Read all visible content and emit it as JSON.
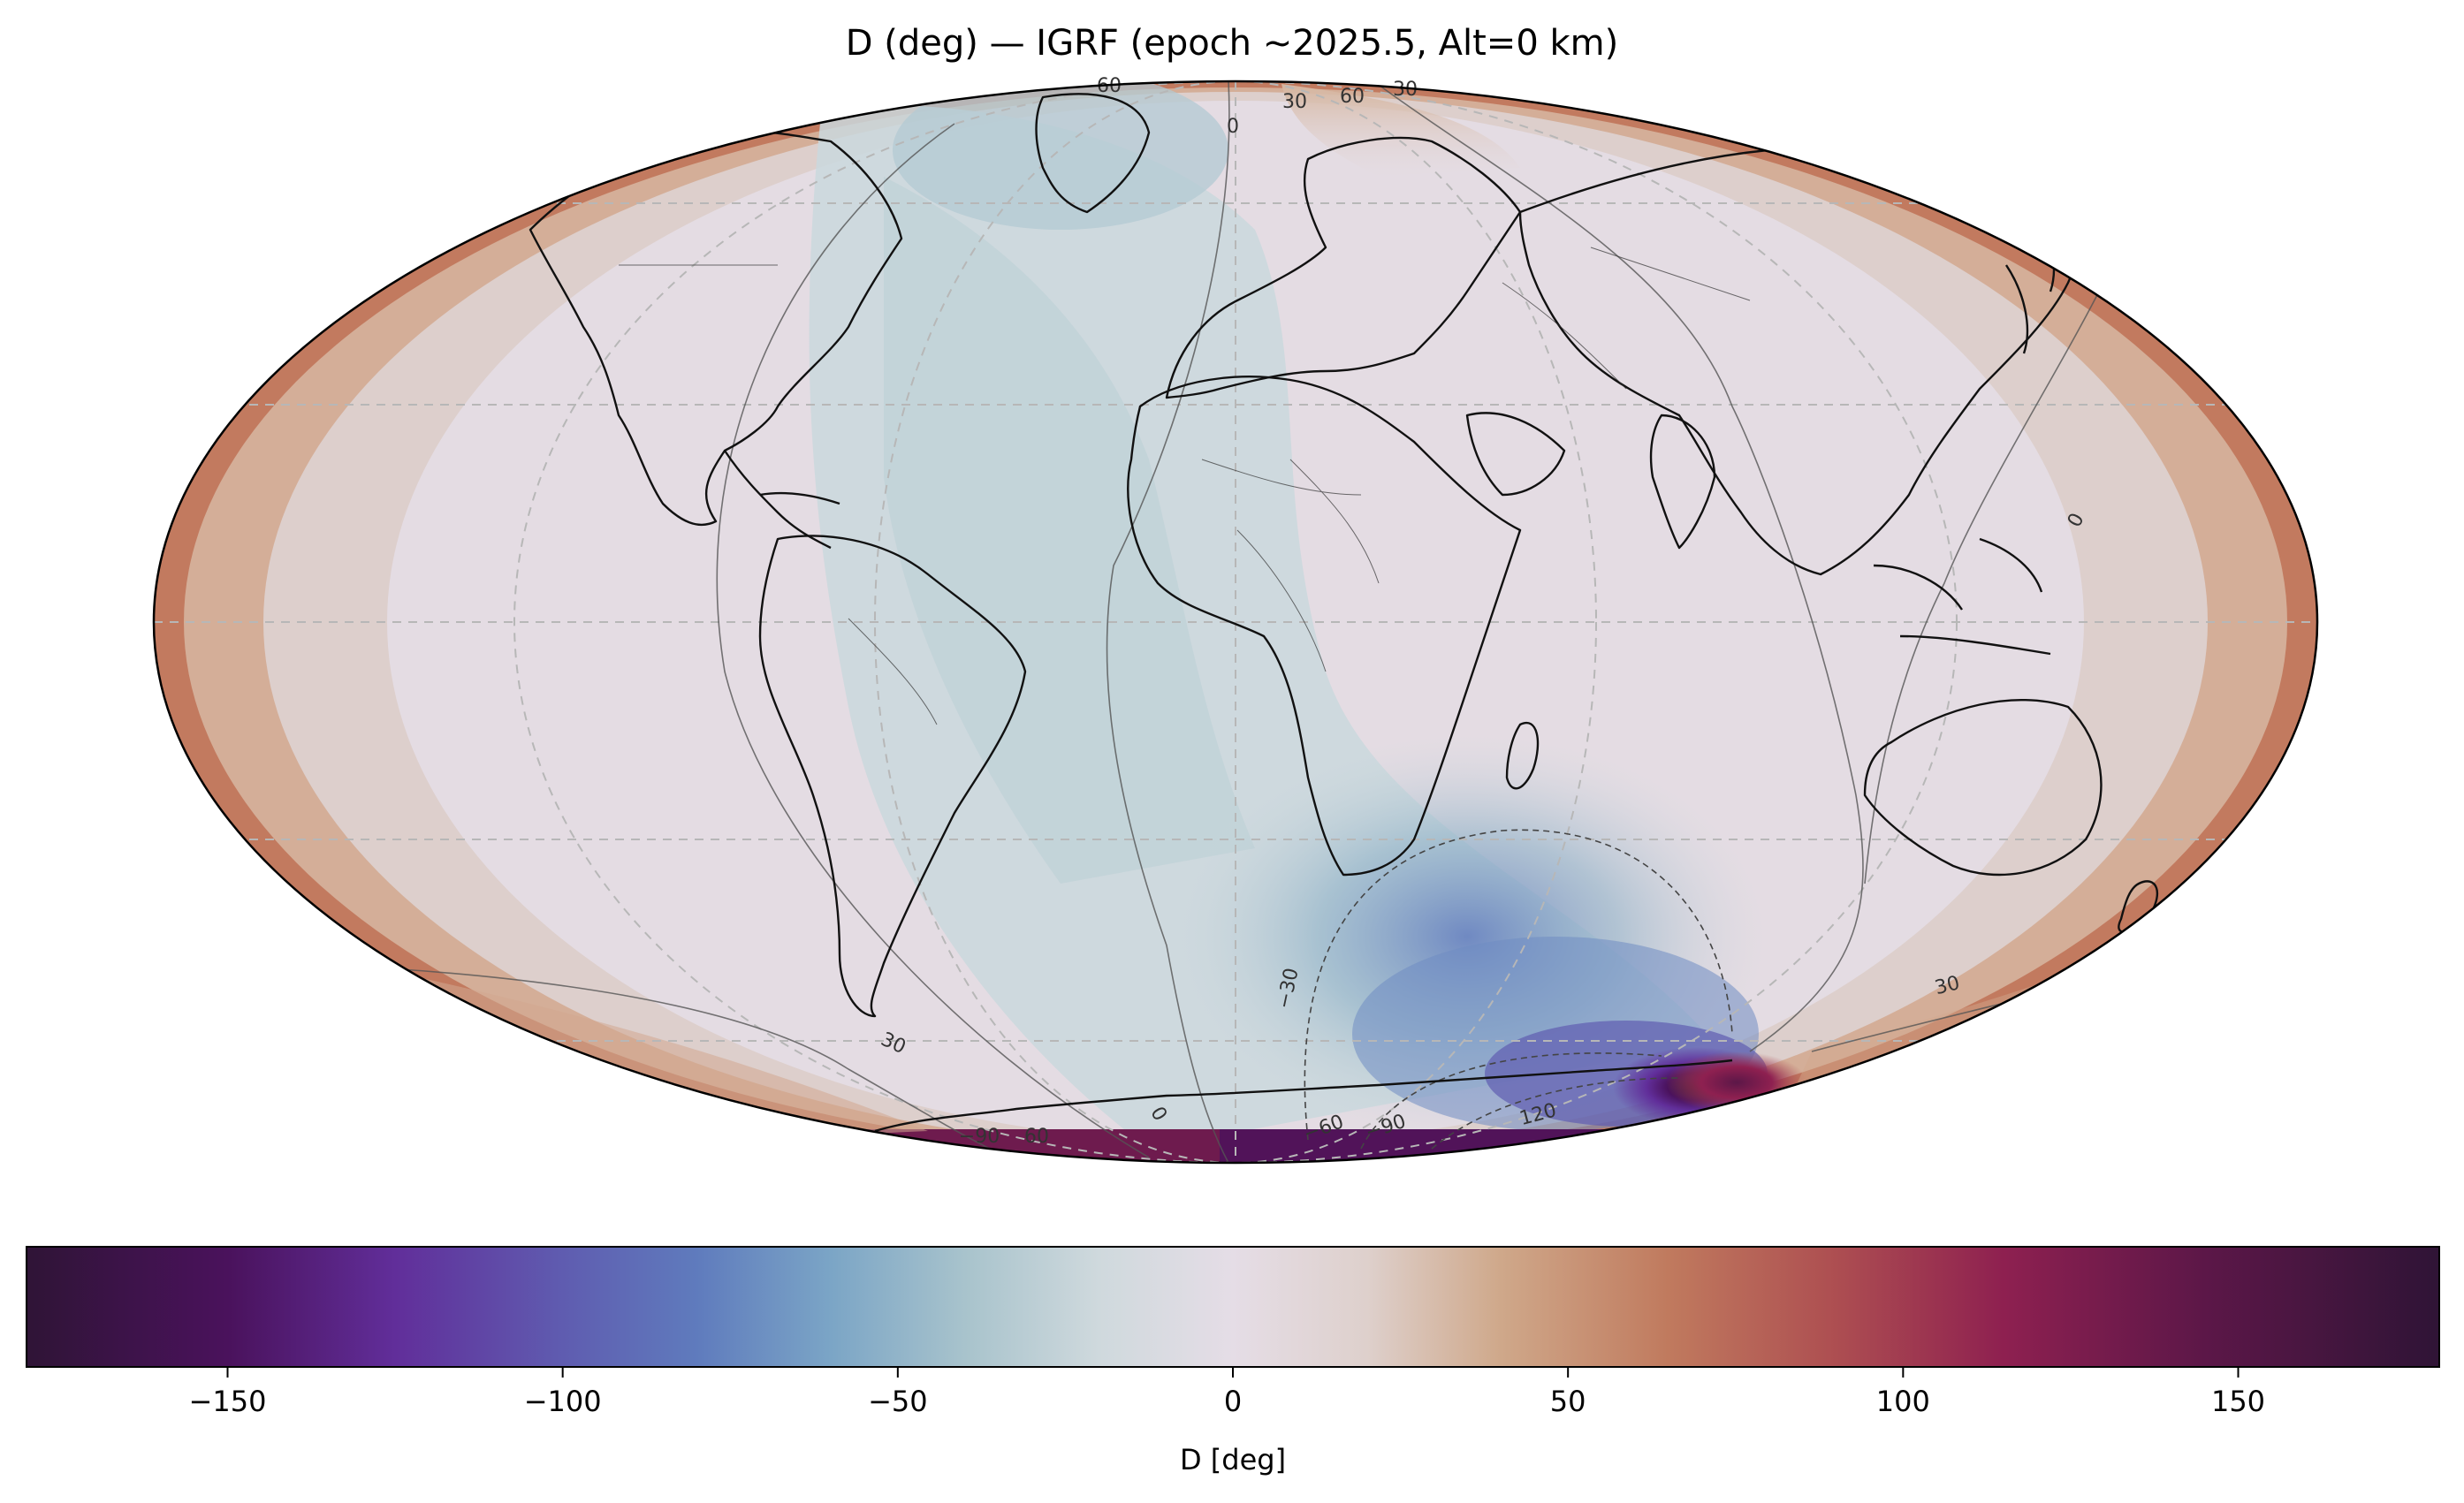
{
  "figure": {
    "title": "D (deg) — IGRF (epoch ~2025.5, Alt=0 km)"
  },
  "chart_data": {
    "type": "heatmap",
    "title": "D (deg) — IGRF (epoch ~2025.5, Alt=0 km)",
    "projection": "mollweide",
    "variable": "D",
    "colorbar": {
      "label": "D [deg]",
      "range": [
        -180,
        180
      ],
      "ticks": [
        -150,
        -100,
        -50,
        0,
        50,
        100,
        150
      ],
      "tick_labels": [
        "−150",
        "−100",
        "−50",
        "0",
        "50",
        "100",
        "150"
      ],
      "colormap": "twilight_shifted",
      "stops": [
        {
          "v": -180,
          "c": "#2f1436"
        },
        {
          "v": -150,
          "c": "#4a125c"
        },
        {
          "v": -125,
          "c": "#612e9a"
        },
        {
          "v": -100,
          "c": "#5f5cb0"
        },
        {
          "v": -80,
          "c": "#5f7bbd"
        },
        {
          "v": -60,
          "c": "#7ba5c6"
        },
        {
          "v": -40,
          "c": "#a8c3cc"
        },
        {
          "v": -20,
          "c": "#cfd9dd"
        },
        {
          "v": 0,
          "c": "#e5dde6"
        },
        {
          "v": 20,
          "c": "#ded0cc"
        },
        {
          "v": 40,
          "c": "#cfa88a"
        },
        {
          "v": 65,
          "c": "#c07a5e"
        },
        {
          "v": 90,
          "c": "#ad4e51"
        },
        {
          "v": 115,
          "c": "#8e2050"
        },
        {
          "v": 145,
          "c": "#5c1748"
        },
        {
          "v": 180,
          "c": "#2f1436"
        }
      ]
    },
    "contour_labels": [
      "0",
      "30",
      "−30",
      "60",
      "−60",
      "90",
      "−90",
      "120",
      "−120"
    ],
    "grid": true
  }
}
